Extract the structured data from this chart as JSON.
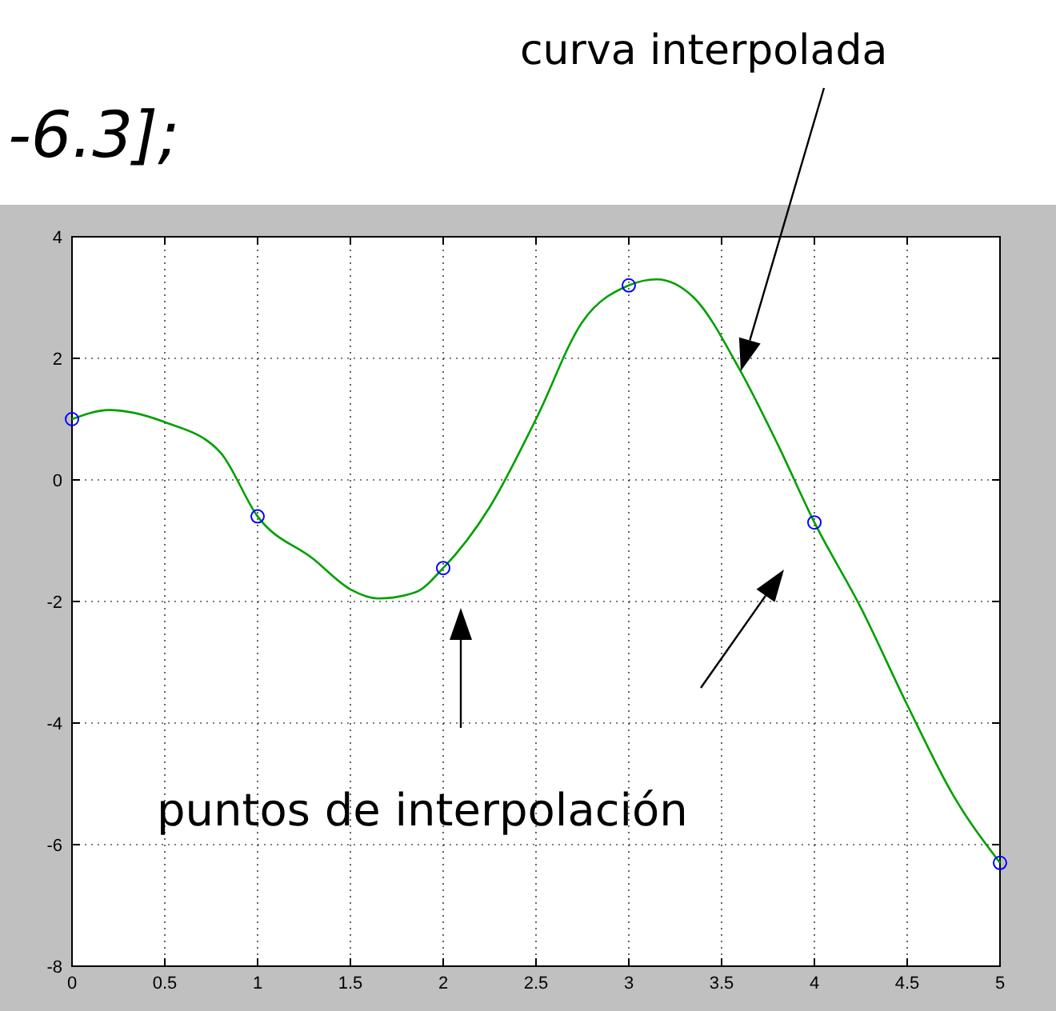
{
  "chart_data": {
    "type": "line",
    "xlim": [
      0,
      5
    ],
    "ylim": [
      -8,
      4
    ],
    "xticks": [
      0,
      0.5,
      1,
      1.5,
      2,
      2.5,
      3,
      3.5,
      4,
      4.5,
      5
    ],
    "yticks": [
      -8,
      -6,
      -4,
      -2,
      0,
      2,
      4
    ],
    "grid": true,
    "annotations": [
      "-6.3];",
      "curva interpolada",
      "puntos de interpolación"
    ],
    "series": [
      {
        "type": "line",
        "color": "#00a000",
        "marker": "none",
        "x": [
          0,
          0.2,
          0.5,
          0.8,
          1,
          1.3,
          1.5,
          1.65,
          1.85,
          2,
          2.25,
          2.5,
          2.75,
          3,
          3.15,
          3.35,
          3.6,
          3.8,
          4,
          4.25,
          4.5,
          4.75,
          5
        ],
        "values": [
          1,
          1.15,
          0.95,
          0.45,
          -0.6,
          -1.3,
          -1.8,
          -1.95,
          -1.85,
          -1.45,
          -0.45,
          1,
          2.6,
          3.2,
          3.3,
          3,
          1.8,
          0.6,
          -0.7,
          -2.1,
          -3.7,
          -5.2,
          -6.3
        ]
      },
      {
        "type": "scatter",
        "color": "#0000ff",
        "marker": "circle",
        "x": [
          0,
          1,
          2,
          3,
          4,
          5
        ],
        "values": [
          1,
          -0.6,
          -1.45,
          3.2,
          -0.7,
          -6.3
        ]
      }
    ]
  }
}
